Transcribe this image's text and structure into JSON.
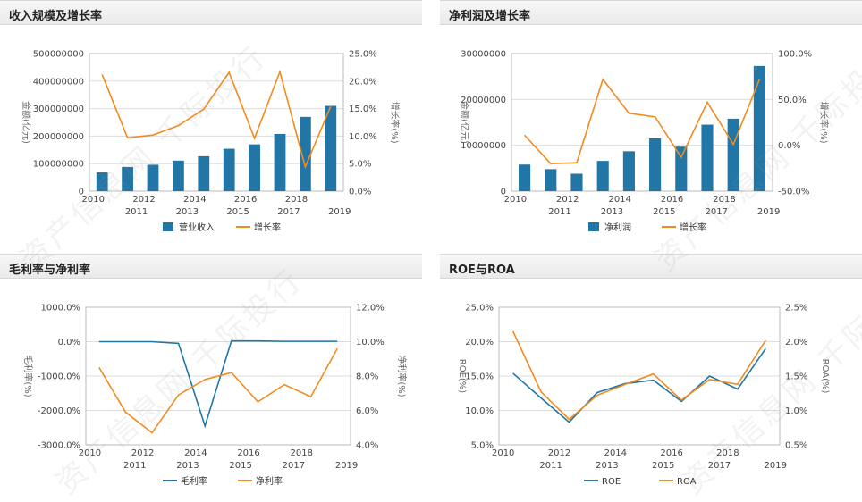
{
  "watermark": "资产信息网 千际投行",
  "colors": {
    "bar": "#2276a5",
    "line_orange": "#f28b1e",
    "line_blue": "#2276a5",
    "grid": "#dddddd"
  },
  "chart_data": [
    {
      "type": "bar-line",
      "title": "收入规模及增长率",
      "categories": [
        "2010",
        "2011",
        "2012",
        "2013",
        "2014",
        "2015",
        "2016",
        "2017",
        "2018",
        "2019"
      ],
      "series": [
        {
          "name": "营业收入",
          "kind": "bar",
          "axis": "left",
          "values": [
            68000000,
            88000000,
            96000000,
            111000000,
            127000000,
            154000000,
            170000000,
            208000000,
            270000000,
            310000000
          ]
        },
        {
          "name": "增长率",
          "kind": "line",
          "axis": "right",
          "values": [
            21.2,
            9.7,
            10.2,
            11.9,
            14.9,
            21.6,
            9.6,
            21.7,
            4.4,
            15.4
          ]
        }
      ],
      "ylabel_left": "金额(亿元)",
      "ylabel_right": "增长率(%)",
      "ylim_left": [
        0,
        500000000
      ],
      "ylim_right": [
        0,
        25
      ],
      "yticks_left": [
        "0",
        "100000000",
        "200000000",
        "300000000",
        "400000000",
        "500000000"
      ],
      "yticks_right": [
        "0.0%",
        "5.0%",
        "10.0%",
        "15.0%",
        "20.0%",
        "25.0%"
      ]
    },
    {
      "type": "bar-line",
      "title": "净利润及增长率",
      "categories": [
        "2010",
        "2011",
        "2012",
        "2013",
        "2014",
        "2015",
        "2016",
        "2017",
        "2018",
        "2019"
      ],
      "series": [
        {
          "name": "净利润",
          "kind": "bar",
          "axis": "left",
          "values": [
            5800000,
            4800000,
            3800000,
            6600000,
            8700000,
            11500000,
            9700000,
            14500000,
            15800000,
            27300000
          ]
        },
        {
          "name": "增长率",
          "kind": "line",
          "axis": "right",
          "values": [
            11,
            -20,
            -19,
            72,
            35,
            31,
            -13,
            47,
            1,
            72
          ]
        }
      ],
      "ylabel_left": "金额(亿元)",
      "ylabel_right": "增长率(%)",
      "ylim_left": [
        0,
        30000000
      ],
      "ylim_right": [
        -50,
        100
      ],
      "yticks_left": [
        "0",
        "10000000",
        "20000000",
        "30000000"
      ],
      "yticks_right": [
        "-50.0%",
        "0.0%",
        "50.0%",
        "100.0%"
      ]
    },
    {
      "type": "line",
      "title": "毛利率与净利率",
      "categories": [
        "2010",
        "2011",
        "2012",
        "2013",
        "2014",
        "2015",
        "2016",
        "2017",
        "2018",
        "2019"
      ],
      "series": [
        {
          "name": "毛利率",
          "kind": "line",
          "axis": "left",
          "values": [
            0,
            0,
            0,
            -50,
            -2450,
            20,
            20,
            10,
            10,
            10
          ]
        },
        {
          "name": "净利率",
          "kind": "line",
          "axis": "right",
          "values": [
            8.5,
            5.9,
            4.7,
            6.9,
            7.8,
            8.2,
            6.5,
            7.5,
            6.8,
            9.6
          ]
        }
      ],
      "ylabel_left": "毛利率(%)",
      "ylabel_right": "净利率(%)",
      "ylim_left": [
        -3000,
        1000
      ],
      "ylim_right": [
        4,
        12
      ],
      "yticks_left": [
        "-3000.0%",
        "-2000.0%",
        "-1000.0%",
        "0.0%",
        "1000.0%"
      ],
      "yticks_right": [
        "4.0%",
        "6.0%",
        "8.0%",
        "10.0%",
        "12.0%"
      ]
    },
    {
      "type": "line",
      "title": "ROE与ROA",
      "categories": [
        "2010",
        "2011",
        "2012",
        "2013",
        "2014",
        "2015",
        "2016",
        "2017",
        "2018",
        "2019"
      ],
      "series": [
        {
          "name": "ROE",
          "kind": "line",
          "axis": "left",
          "values": [
            15.4,
            11.8,
            8.3,
            12.6,
            13.9,
            14.4,
            11.3,
            15,
            13.1,
            19
          ]
        },
        {
          "name": "ROA",
          "kind": "line",
          "axis": "right",
          "values": [
            2.15,
            1.27,
            0.87,
            1.22,
            1.38,
            1.53,
            1.15,
            1.45,
            1.38,
            2.02
          ]
        }
      ],
      "ylabel_left": "ROE(%)",
      "ylabel_right": "ROA(%)",
      "ylim_left": [
        5,
        25
      ],
      "ylim_right": [
        0.5,
        2.5
      ],
      "yticks_left": [
        "5.0%",
        "10.0%",
        "15.0%",
        "20.0%",
        "25.0%"
      ],
      "yticks_right": [
        "0.5%",
        "1.0%",
        "1.5%",
        "2.0%",
        "2.5%"
      ]
    }
  ]
}
